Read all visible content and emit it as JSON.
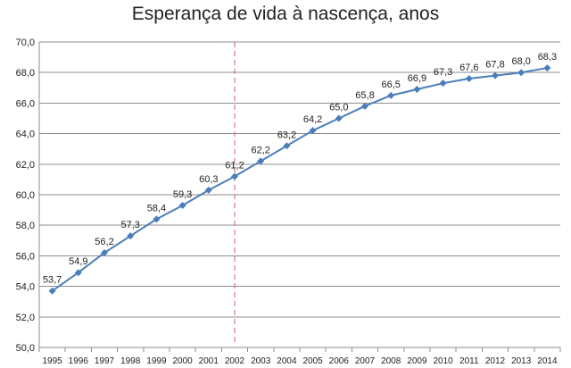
{
  "chart_data": {
    "type": "line",
    "title": "Esperança de vida à nascença, anos",
    "xlabel": "",
    "ylabel": "",
    "categories": [
      "1995",
      "1996",
      "1997",
      "1998",
      "1999",
      "2000",
      "2001",
      "2002",
      "2003",
      "2004",
      "2005",
      "2006",
      "2007",
      "2008",
      "2009",
      "2010",
      "2011",
      "2012",
      "2013",
      "2014"
    ],
    "series": [
      {
        "name": "Esperança de vida à nascença",
        "values": [
          53.7,
          54.9,
          56.2,
          57.3,
          58.4,
          59.3,
          60.3,
          61.2,
          62.2,
          63.2,
          64.2,
          65.0,
          65.8,
          66.5,
          66.9,
          67.3,
          67.6,
          67.8,
          68.0,
          68.3
        ],
        "data_labels": [
          "53,7",
          "54,9",
          "56,2",
          "57,3",
          "58,4",
          "59,3",
          "60,3",
          "61,2",
          "62,2",
          "63,2",
          "64,2",
          "65,0",
          "65,8",
          "66,5",
          "66,9",
          "67,3",
          "67,6",
          "67,8",
          "68,0",
          "68,3"
        ],
        "color": "#4a7ebb"
      }
    ],
    "ylim": [
      50,
      70
    ],
    "yticks": [
      50,
      52,
      54,
      56,
      58,
      60,
      62,
      64,
      66,
      68,
      70
    ],
    "ytick_labels": [
      "50,0",
      "52,0",
      "54,0",
      "56,0",
      "58,0",
      "60,0",
      "62,0",
      "64,0",
      "66,0",
      "68,0",
      "70,0"
    ],
    "grid": true,
    "reference_line": {
      "category": "2002",
      "style": "dashed",
      "color": "#d9797a"
    },
    "colors": {
      "gridline": "#8c8c8c",
      "axis": "#8c8c8c"
    }
  }
}
